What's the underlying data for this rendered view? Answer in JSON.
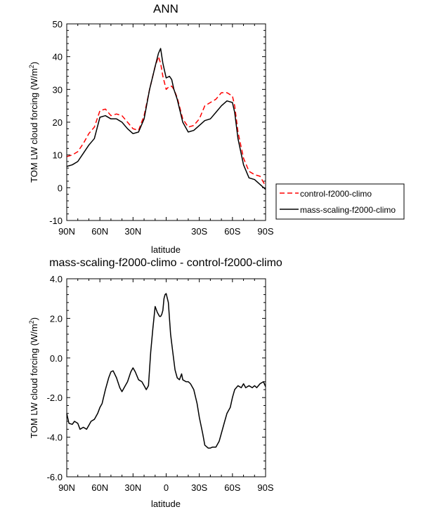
{
  "chart_data": [
    {
      "type": "line",
      "title": "ANN",
      "xlabel": "latitude",
      "ylabel": "TOM LW cloud forcing (W/m",
      "ylabel_sup": "2",
      "ylabel_close": ")",
      "xlim": [
        90,
        -90
      ],
      "ylim": [
        -10,
        50
      ],
      "yticks": [
        -10,
        0,
        10,
        20,
        30,
        40,
        50
      ],
      "ytick_labels": [
        "-10",
        "0",
        "10",
        "20",
        "30",
        "40",
        "50"
      ],
      "xticks": [
        90,
        60,
        30,
        0,
        -30,
        -60,
        -90
      ],
      "xtick_labels": [
        "90N",
        "60N",
        "30N",
        "",
        "30S",
        "60S",
        "90S"
      ],
      "legend": "outside-right",
      "series": [
        {
          "name": "control-f2000-climo",
          "color": "#ff0000",
          "dash": "dashed",
          "x": [
            90,
            85,
            80,
            75,
            70,
            65,
            60,
            55,
            50,
            45,
            40,
            35,
            30,
            25,
            20,
            15,
            10,
            7,
            5,
            3,
            0,
            -3,
            -5,
            -7,
            -10,
            -15,
            -20,
            -25,
            -30,
            -35,
            -40,
            -45,
            -50,
            -55,
            -60,
            -62,
            -65,
            -70,
            -75,
            -80,
            -85,
            -90
          ],
          "y": [
            9.5,
            10,
            11,
            13.5,
            16.5,
            18.5,
            23.5,
            24,
            22,
            22.5,
            22,
            20,
            18,
            17.5,
            22,
            30,
            37,
            40,
            38,
            34,
            30,
            31,
            31,
            30,
            27.5,
            21,
            18.5,
            19,
            21,
            25,
            26,
            27,
            29,
            29,
            28,
            25,
            17,
            9,
            5,
            4,
            3.5,
            0.5
          ]
        },
        {
          "name": "mass-scaling-f2000-climo",
          "color": "#000000",
          "dash": "solid",
          "x": [
            90,
            85,
            80,
            75,
            70,
            65,
            60,
            55,
            50,
            45,
            40,
            35,
            30,
            25,
            20,
            15,
            10,
            7,
            5,
            3,
            0,
            -3,
            -5,
            -7,
            -10,
            -15,
            -20,
            -25,
            -30,
            -35,
            -40,
            -45,
            -50,
            -55,
            -60,
            -62,
            -65,
            -70,
            -75,
            -80,
            -85,
            -90
          ],
          "y": [
            6.5,
            7,
            8,
            10.5,
            13,
            15,
            21.5,
            22,
            21,
            21,
            20,
            18,
            16.5,
            17,
            21,
            30,
            37,
            41,
            42.5,
            38,
            33.5,
            34,
            33,
            30,
            27,
            20,
            17,
            17.5,
            19,
            20.5,
            21,
            23,
            25,
            26.5,
            26,
            23,
            15,
            7,
            3,
            2.5,
            1,
            -0.5
          ]
        }
      ]
    },
    {
      "type": "line",
      "title": "mass-scaling-f2000-climo - control-f2000-climo",
      "xlabel": "latitude",
      "ylabel": "TOM LW cloud forcing (W/m",
      "ylabel_sup": "2",
      "ylabel_close": ")",
      "xlim": [
        90,
        -90
      ],
      "ylim": [
        -6,
        4
      ],
      "yticks": [
        -6,
        -4,
        -2,
        0,
        2,
        4
      ],
      "ytick_labels": [
        "-6.0",
        "-4.0",
        "-2.0",
        "0.0",
        "2.0",
        "4.0"
      ],
      "xticks": [
        90,
        60,
        30,
        0,
        -30,
        -60,
        -90
      ],
      "xtick_labels": [
        "90N",
        "60N",
        "30N",
        "0",
        "30S",
        "60S",
        "90S"
      ],
      "series": [
        {
          "name": "",
          "color": "#000000",
          "dash": "solid",
          "x": [
            90,
            88,
            85,
            83,
            80,
            78,
            75,
            72,
            70,
            68,
            65,
            62,
            60,
            58,
            55,
            52,
            50,
            48,
            45,
            42,
            40,
            37,
            35,
            32,
            30,
            28,
            25,
            22,
            20,
            18,
            16,
            14,
            12,
            10,
            8,
            6,
            5,
            4,
            3,
            2,
            1,
            0,
            -2,
            -4,
            -6,
            -8,
            -10,
            -12,
            -14,
            -15,
            -18,
            -20,
            -22,
            -25,
            -28,
            -30,
            -33,
            -35,
            -38,
            -40,
            -42,
            -45,
            -48,
            -50,
            -53,
            -55,
            -58,
            -60,
            -62,
            -65,
            -68,
            -70,
            -72,
            -75,
            -78,
            -80,
            -82,
            -85,
            -88,
            -90
          ],
          "y": [
            -2.8,
            -3.3,
            -3.35,
            -3.2,
            -3.3,
            -3.6,
            -3.5,
            -3.6,
            -3.4,
            -3.2,
            -3.1,
            -2.8,
            -2.5,
            -2.3,
            -1.6,
            -1.0,
            -0.7,
            -0.65,
            -1.0,
            -1.5,
            -1.7,
            -1.4,
            -1.2,
            -0.7,
            -0.5,
            -0.7,
            -1.1,
            -1.2,
            -1.4,
            -1.6,
            -1.4,
            0.3,
            1.5,
            2.6,
            2.3,
            2.1,
            2.1,
            2.2,
            2.4,
            3.0,
            3.2,
            3.25,
            2.8,
            1.2,
            0.3,
            -0.6,
            -1.0,
            -1.1,
            -0.8,
            -1.1,
            -1.2,
            -1.2,
            -1.3,
            -1.6,
            -2.3,
            -3.0,
            -3.8,
            -4.4,
            -4.55,
            -4.55,
            -4.5,
            -4.5,
            -4.2,
            -3.8,
            -3.2,
            -2.8,
            -2.5,
            -2.0,
            -1.6,
            -1.4,
            -1.5,
            -1.3,
            -1.5,
            -1.4,
            -1.5,
            -1.4,
            -1.5,
            -1.3,
            -1.2,
            -1.45
          ]
        }
      ]
    }
  ]
}
